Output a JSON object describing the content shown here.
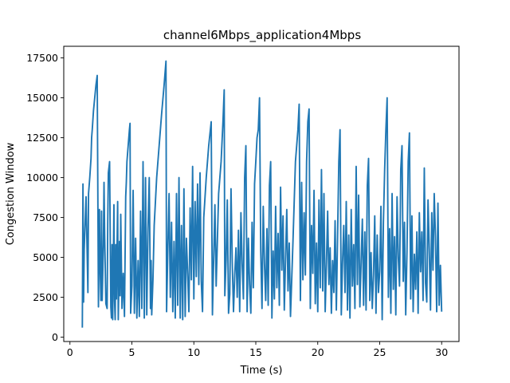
{
  "chart_data": {
    "type": "line",
    "title": "channel6Mbps_application4Mbps",
    "xlabel": "Time (s)",
    "ylabel": "Congestion Window",
    "xlim": [
      -0.5,
      31.4
    ],
    "ylim": [
      -270,
      18230
    ],
    "xticks": [
      0,
      5,
      10,
      15,
      20,
      25,
      30
    ],
    "yticks": [
      0,
      2500,
      5000,
      7500,
      10000,
      12500,
      15000,
      17500
    ],
    "grid": false,
    "line_color": "#1f77b4",
    "series": [
      {
        "x": [
          1.0,
          1.05,
          1.1,
          1.15,
          1.3,
          1.45,
          1.5,
          1.6,
          1.7,
          1.75,
          1.8,
          1.9,
          2.0,
          2.1,
          2.2,
          2.3,
          2.38,
          2.42,
          2.5,
          2.55,
          2.6,
          2.7,
          2.75,
          2.8,
          2.9,
          3.0,
          3.05,
          3.1,
          3.2,
          3.3,
          3.35,
          3.4,
          3.45,
          3.5,
          3.55,
          3.6,
          3.65,
          3.7,
          3.75,
          3.85,
          3.9,
          4.0,
          4.05,
          4.1,
          4.2,
          4.3,
          4.4,
          4.5,
          4.55,
          4.6,
          4.7,
          4.8,
          4.85,
          4.9,
          5.0,
          5.1,
          5.2,
          5.3,
          5.4,
          5.5,
          5.6,
          5.7,
          5.8,
          5.9,
          6.0,
          6.1,
          6.2,
          6.3,
          6.4,
          6.5,
          6.55,
          6.6,
          6.7,
          6.8,
          7.0,
          7.2,
          7.4,
          7.6,
          7.75,
          7.8,
          7.9,
          8.0,
          8.1,
          8.2,
          8.3,
          8.4,
          8.5,
          8.6,
          8.7,
          8.8,
          8.9,
          9.0,
          9.1,
          9.2,
          9.3,
          9.4,
          9.5,
          9.6,
          9.7,
          9.8,
          9.9,
          10.0,
          10.1,
          10.2,
          10.3,
          10.4,
          10.5,
          10.6,
          10.7,
          10.8,
          11.0,
          11.2,
          11.4,
          11.5,
          11.6,
          11.7,
          11.8,
          12.0,
          12.2,
          12.35,
          12.45,
          12.5,
          12.6,
          12.7,
          12.8,
          12.9,
          13.0,
          13.1,
          13.2,
          13.3,
          13.4,
          13.5,
          13.6,
          13.7,
          13.8,
          13.9,
          14.0,
          14.1,
          14.2,
          14.3,
          14.4,
          14.5,
          14.6,
          14.7,
          14.8,
          14.9,
          15.0,
          15.1,
          15.2,
          15.3,
          15.4,
          15.5,
          15.6,
          15.7,
          15.8,
          15.9,
          16.0,
          16.1,
          16.2,
          16.3,
          16.4,
          16.5,
          16.6,
          16.7,
          16.8,
          16.9,
          17.0,
          17.1,
          17.2,
          17.3,
          17.4,
          17.5,
          17.6,
          17.7,
          17.8,
          18.0,
          18.2,
          18.4,
          18.5,
          18.6,
          18.7,
          18.8,
          18.9,
          19.0,
          19.1,
          19.2,
          19.3,
          19.4,
          19.5,
          19.6,
          19.7,
          19.8,
          19.9,
          20.0,
          20.1,
          20.2,
          20.3,
          20.4,
          20.5,
          20.6,
          20.7,
          20.8,
          20.9,
          21.0,
          21.1,
          21.2,
          21.3,
          21.4,
          21.5,
          21.6,
          21.7,
          21.8,
          21.9,
          22.0,
          22.1,
          22.2,
          22.3,
          22.4,
          22.5,
          22.6,
          22.7,
          22.8,
          22.9,
          23.0,
          23.1,
          23.2,
          23.3,
          23.4,
          23.5,
          23.6,
          23.7,
          23.8,
          23.9,
          24.0,
          24.1,
          24.2,
          24.3,
          24.4,
          24.5,
          24.6,
          24.7,
          24.8,
          24.9,
          25.0,
          25.1,
          25.2,
          25.3,
          25.4,
          25.5,
          25.6,
          25.7,
          25.8,
          25.9,
          26.0,
          26.1,
          26.2,
          26.3,
          26.4,
          26.5,
          26.6,
          26.7,
          26.8,
          26.9,
          27.0,
          27.1,
          27.2,
          27.3,
          27.4,
          27.5,
          27.6,
          27.7,
          27.8,
          27.9,
          28.0,
          28.1,
          28.2,
          28.3,
          28.4,
          28.5,
          28.6,
          28.7,
          28.8,
          28.9,
          29.0,
          29.1,
          29.2,
          29.3,
          29.4,
          29.5,
          29.6,
          29.7,
          29.8,
          29.9,
          30.0
        ],
        "values": [
          600,
          9600,
          2200,
          5500,
          8800,
          2800,
          9000,
          10000,
          11200,
          12500,
          13000,
          14200,
          15000,
          15800,
          16400,
          1900,
          8000,
          5000,
          2300,
          7900,
          2300,
          5800,
          9700,
          6500,
          2100,
          1800,
          7200,
          10300,
          11000,
          1900,
          1200,
          5800,
          1100,
          4500,
          8300,
          2300,
          1100,
          5800,
          2400,
          8500,
          1100,
          6000,
          2600,
          7700,
          1800,
          4000,
          1300,
          8800,
          9700,
          11000,
          12000,
          13000,
          13400,
          1500,
          3200,
          9200,
          1500,
          6200,
          1200,
          4800,
          1300,
          7900,
          1800,
          11000,
          1200,
          10000,
          1400,
          6800,
          10000,
          1800,
          4800,
          1400,
          3600,
          7000,
          10000,
          12000,
          14000,
          15800,
          17300,
          1600,
          5500,
          9000,
          2500,
          7200,
          1600,
          6000,
          1200,
          9000,
          2000,
          10000,
          1200,
          7000,
          1100,
          9300,
          1300,
          6200,
          4000,
          1600,
          8100,
          3600,
          10700,
          2400,
          8500,
          3800,
          9600,
          3300,
          10300,
          3500,
          1600,
          7500,
          10000,
          12000,
          13500,
          1400,
          4900,
          8300,
          3200,
          9000,
          11000,
          13500,
          15500,
          2600,
          4800,
          8600,
          1500,
          2700,
          9300,
          4700,
          1600,
          3900,
          5600,
          2500,
          6700,
          1600,
          7800,
          4600,
          2400,
          10000,
          12000,
          1600,
          6200,
          3300,
          1500,
          7200,
          3100,
          9600,
          11000,
          12500,
          13000,
          15000,
          5400,
          1800,
          8200,
          4600,
          2300,
          6800,
          2000,
          9500,
          11000,
          1200,
          5400,
          2400,
          8200,
          3100,
          6500,
          2000,
          9400,
          4200,
          7600,
          1700,
          4900,
          8000,
          2900,
          5900,
          1300,
          6000,
          11000,
          13000,
          14600,
          2300,
          9700,
          3600,
          7800,
          3900,
          11000,
          13500,
          14300,
          1800,
          7000,
          4000,
          9200,
          2100,
          5900,
          1600,
          8600,
          3100,
          10500,
          2900,
          9000,
          1600,
          4600,
          7900,
          3300,
          5600,
          1500,
          4800,
          2800,
          7300,
          1700,
          6300,
          11000,
          13000,
          1400,
          4700,
          7000,
          2800,
          8500,
          1700,
          6400,
          1200,
          8000,
          3200,
          5800,
          1800,
          10700,
          3300,
          8900,
          1900,
          4700,
          7400,
          2000,
          6600,
          1700,
          9500,
          11200,
          2300,
          5300,
          1800,
          3900,
          7600,
          1500,
          6400,
          2800,
          4100,
          8200,
          1100,
          7200,
          10500,
          13000,
          15000,
          2500,
          6800,
          1500,
          9000,
          3000,
          6300,
          1400,
          8800,
          5000,
          3200,
          10500,
          12000,
          3500,
          7200,
          1400,
          5300,
          11000,
          12800,
          2400,
          7600,
          1600,
          5200,
          3000,
          6600,
          1500,
          7800,
          4100,
          6600,
          2300,
          10600,
          3400,
          2200,
          8600,
          5500,
          1700,
          7800,
          4200,
          9000,
          6300,
          1600,
          8400,
          2000,
          4500,
          1600
        ]
      }
    ]
  }
}
